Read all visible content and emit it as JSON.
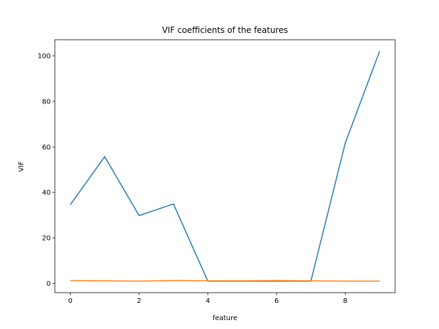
{
  "chart_data": {
    "type": "line",
    "title": "VIF coefficients of the features",
    "xlabel": "feature",
    "ylabel": "VIF",
    "x": [
      0,
      1,
      2,
      3,
      4,
      5,
      6,
      7,
      8,
      9
    ],
    "series": [
      {
        "color": "#1f77b4",
        "values": [
          34.6,
          55.7,
          29.8,
          34.9,
          1.0,
          1.0,
          1.0,
          1.0,
          61.7,
          102.1
        ]
      },
      {
        "color": "#ff7f0e",
        "values": [
          1.2,
          1.1,
          1.0,
          1.2,
          1.1,
          1.1,
          1.2,
          1.1,
          1.0,
          1.0
        ]
      }
    ],
    "xlim": [
      -0.45,
      9.45
    ],
    "xticks": [
      0,
      2,
      4,
      6,
      8
    ],
    "ylim": [
      -4.1,
      107.1
    ],
    "yticks": [
      0,
      20,
      40,
      60,
      80,
      100
    ]
  }
}
